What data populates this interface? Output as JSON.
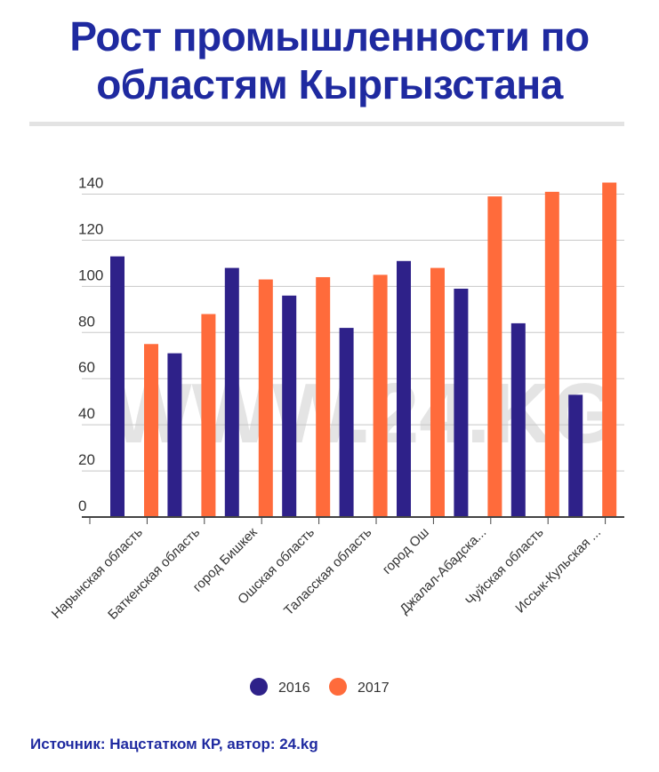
{
  "title": "Рост промышленности по областям Кыргызстана",
  "watermark": "WWW.24.KG",
  "source": "Источник: Нацстатком КР, автор: 24.kg",
  "colors": {
    "s2016": "#2e2189",
    "s2017": "#ff6b3b",
    "title": "#1f2aa0"
  },
  "chart_data": {
    "type": "bar",
    "title": "Рост промышленности по областям Кыргызстана",
    "xlabel": "",
    "ylabel": "",
    "ylim": [
      0,
      140
    ],
    "yticks": [
      0,
      20,
      40,
      60,
      80,
      100,
      120,
      140
    ],
    "grid": true,
    "legend_position": "bottom",
    "categories": [
      "Нарынская область",
      "Баткенская область",
      "город Бишкек",
      "Ошская область",
      "Таласская область",
      "город Ош",
      "Джалал-Абадска...",
      "Чуйская область",
      "Иссык-Кульская ..."
    ],
    "series": [
      {
        "name": "2016",
        "values": [
          113,
          71,
          108,
          96,
          82,
          111,
          99,
          84,
          53
        ]
      },
      {
        "name": "2017",
        "values": [
          75,
          88,
          103,
          104,
          105,
          108,
          139,
          141,
          145
        ]
      }
    ]
  }
}
